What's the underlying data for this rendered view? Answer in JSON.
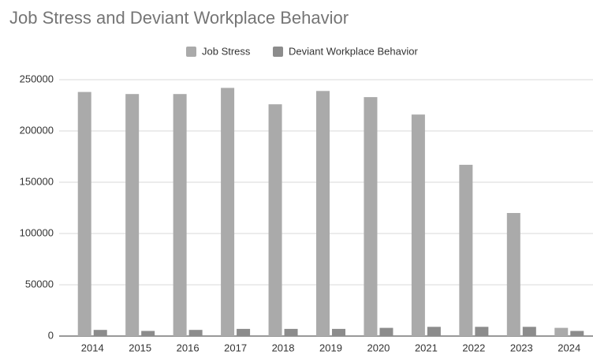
{
  "chart_data": {
    "type": "bar",
    "title": "Job Stress and Deviant Workplace Behavior",
    "categories": [
      "2014",
      "2015",
      "2016",
      "2017",
      "2018",
      "2019",
      "2020",
      "2021",
      "2022",
      "2023",
      "2024"
    ],
    "series": [
      {
        "name": "Job Stress",
        "color": "#aaaaaa",
        "values": [
          238000,
          236000,
          236000,
          242000,
          226000,
          239000,
          233000,
          216000,
          167000,
          120000,
          8000
        ]
      },
      {
        "name": "Deviant Workplace Behavior",
        "color": "#8c8c8c",
        "values": [
          6000,
          5000,
          6000,
          7000,
          7000,
          7000,
          8000,
          9000,
          9000,
          9000,
          5000
        ]
      }
    ],
    "ylim": [
      0,
      250000
    ],
    "yticks": [
      0,
      50000,
      100000,
      150000,
      200000,
      250000
    ],
    "grid": true,
    "legend": "top"
  }
}
